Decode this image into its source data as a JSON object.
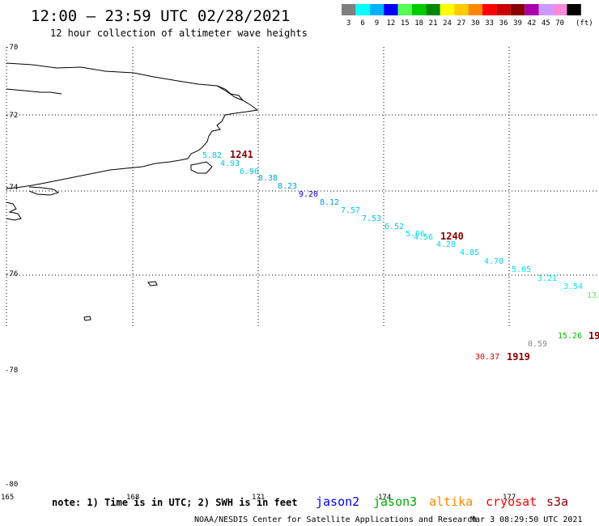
{
  "header": {
    "title": "12:00 – 23:59 UTC 02/28/2021",
    "subtitle": "12 hour collection of altimeter wave heights"
  },
  "legend": {
    "unit": "(ft)",
    "items": [
      {
        "value": "3",
        "color": "#7f7f7f"
      },
      {
        "value": "6",
        "color": "#00ffff"
      },
      {
        "value": "9",
        "color": "#00b2ff"
      },
      {
        "value": "12",
        "color": "#0000ff"
      },
      {
        "value": "15",
        "color": "#55ff55"
      },
      {
        "value": "18",
        "color": "#00cc00"
      },
      {
        "value": "21",
        "color": "#008800"
      },
      {
        "value": "24",
        "color": "#ffff00"
      },
      {
        "value": "27",
        "color": "#ffcc00"
      },
      {
        "value": "30",
        "color": "#ff8800"
      },
      {
        "value": "33",
        "color": "#ff0000"
      },
      {
        "value": "36",
        "color": "#cc0000"
      },
      {
        "value": "39",
        "color": "#880000"
      },
      {
        "value": "42",
        "color": "#aa00aa"
      },
      {
        "value": "45",
        "color": "#cc99ff"
      },
      {
        "value": "70",
        "color": "#ff88dd"
      },
      {
        "value": "",
        "color": "#000000"
      }
    ]
  },
  "lat_labels": [
    "-70",
    "-72",
    "-74",
    "-76",
    "-78",
    "-80"
  ],
  "lon_labels": [
    "165",
    "168",
    "171",
    "174",
    "177"
  ],
  "observations": [
    {
      "value": "5.82",
      "color": "#00c8e6"
    },
    {
      "value": "4.93",
      "color": "#00c8e6"
    },
    {
      "value": "6.96",
      "color": "#00c8e6"
    },
    {
      "value": "8.38",
      "color": "#00a0dc"
    },
    {
      "value": "8.23",
      "color": "#00a0dc"
    },
    {
      "value": "9.20",
      "color": "#0000dd"
    },
    {
      "value": "8.12",
      "color": "#00a0dc"
    },
    {
      "value": "7.57",
      "color": "#00c8e6"
    },
    {
      "value": "7.53",
      "color": "#00c8e6"
    },
    {
      "value": "6.52",
      "color": "#00c8e6"
    },
    {
      "value": "5.06",
      "color": "#00d8ec"
    },
    {
      "value": "4.56",
      "color": "#00d8ec"
    },
    {
      "value": "4.28",
      "color": "#00d8ec"
    },
    {
      "value": "4.85",
      "color": "#00d8ec"
    },
    {
      "value": "4.70",
      "color": "#00d8ec"
    },
    {
      "value": "5.05",
      "color": "#00e8f0"
    },
    {
      "value": "3.21",
      "color": "#00e8f0"
    },
    {
      "value": "3.54",
      "color": "#00e8f0"
    },
    {
      "value": "13.",
      "color": "#55ee55"
    },
    {
      "value": "15.26",
      "color": "#00bb00"
    },
    {
      "value": "0.59",
      "color": "#888888"
    },
    {
      "value": "30.37",
      "color": "#dd0000"
    }
  ],
  "time_labels": [
    {
      "value": "1241",
      "color": "#880000"
    },
    {
      "value": "1240",
      "color": "#880000"
    },
    {
      "value": "1919",
      "color": "#880000"
    },
    {
      "value": "19",
      "color": "#880000"
    }
  ],
  "footer": {
    "note": "note:  1) Time is in UTC; 2) SWH is in feet",
    "satellites": [
      {
        "name": "jason2",
        "color": "#0000ff"
      },
      {
        "name": "jason3",
        "color": "#00aa00"
      },
      {
        "name": "altika",
        "color": "#ff8800"
      },
      {
        "name": "cryosat",
        "color": "#ff0000"
      },
      {
        "name": "s3a",
        "color": "#880000"
      }
    ],
    "credit": "NOAA/NESDIS Center for Satellite Applications and Research",
    "timestamp": "Mar  3 08:29:50 UTC 2021"
  }
}
